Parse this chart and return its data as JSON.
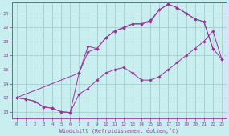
{
  "xlabel": "Windchill (Refroidissement éolien,°C)",
  "bg_color": "#c8eef0",
  "line_color": "#993399",
  "grid_color": "#aacccc",
  "axis_color": "#993399",
  "text_color": "#993399",
  "xlim": [
    -0.5,
    23.5
  ],
  "ylim": [
    9.0,
    25.5
  ],
  "yticks": [
    10,
    12,
    14,
    16,
    18,
    20,
    22,
    24
  ],
  "xticks": [
    0,
    1,
    2,
    3,
    4,
    5,
    6,
    7,
    8,
    9,
    10,
    11,
    12,
    13,
    14,
    15,
    16,
    17,
    18,
    19,
    20,
    21,
    22,
    23
  ],
  "line1_x": [
    0,
    1,
    2,
    3,
    4,
    5,
    6,
    7,
    8,
    9,
    10,
    11,
    12,
    13,
    14,
    15,
    16,
    17,
    18,
    19,
    20,
    21,
    22,
    23
  ],
  "line1_y": [
    12.0,
    11.8,
    11.5,
    10.7,
    10.5,
    10.0,
    9.9,
    12.5,
    13.3,
    14.5,
    15.5,
    16.0,
    16.3,
    15.5,
    14.5,
    14.5,
    15.0,
    16.0,
    17.0,
    18.0,
    19.0,
    20.0,
    21.5,
    17.5
  ],
  "line2_x": [
    0,
    1,
    2,
    3,
    4,
    5,
    6,
    7,
    8,
    9,
    10,
    11,
    12,
    13,
    14,
    15,
    16,
    17,
    18,
    19,
    20,
    21,
    22
  ],
  "line2_y": [
    12.0,
    11.8,
    11.5,
    10.7,
    10.5,
    10.0,
    9.9,
    15.5,
    18.5,
    19.0,
    20.5,
    21.5,
    22.0,
    22.5,
    22.5,
    23.0,
    24.5,
    25.3,
    24.8,
    24.0,
    23.2,
    22.8,
    19.0
  ],
  "line3_x": [
    0,
    7,
    8,
    9,
    10,
    11,
    12,
    13,
    14,
    15,
    16,
    17,
    18,
    19,
    20,
    21,
    22,
    23
  ],
  "line3_y": [
    12.0,
    15.5,
    19.3,
    19.0,
    20.5,
    21.5,
    21.9,
    22.5,
    22.5,
    22.8,
    24.5,
    25.3,
    24.8,
    24.0,
    23.2,
    22.8,
    19.0,
    17.5
  ]
}
